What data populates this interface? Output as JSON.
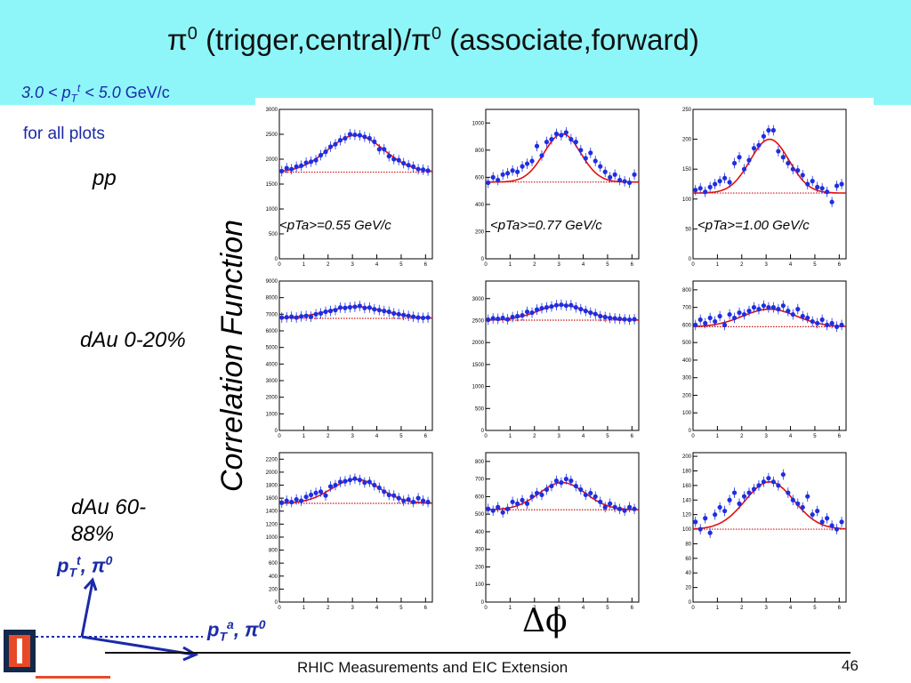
{
  "slide": {
    "title_pi_a": "π",
    "title_sup_a": "0",
    "title_mid": " (trigger,central)/",
    "title_pi_b": "π",
    "title_sup_b": "0",
    "title_end": " (associate,forward)",
    "pt_range_pre": "3.0 < p",
    "pt_range_sub": "T",
    "pt_range_sup": "t",
    "pt_range_post": " < 5.0",
    "pt_range_unit": " GeV/c",
    "for_all": "for all plots",
    "row_labels": [
      "pp",
      "dAu 0-20%",
      "dAu 60-88%"
    ],
    "y_axis_label": "Correlation Function",
    "x_axis_label": "Δϕ",
    "ptt_label_p": "p",
    "ptt_label_sub": "T",
    "ptt_label_sup": "t",
    "ptt_label_rest": ", π",
    "ptt_label_zero": "0",
    "pta_label_p": "p",
    "pta_label_sub": "T",
    "pta_label_sup": "a",
    "pta_label_rest": ", π",
    "pta_label_zero": "0",
    "footer": "RHIC Measurements and EIC Extension",
    "page_number": "46"
  },
  "colors": {
    "banner": "#8ef6f8",
    "text_blue": "#1b2aa8",
    "data_points": "#1f2ee0",
    "fit_line": "#e01010",
    "baseline": "#d01010",
    "arrow": "#1b2aa8"
  },
  "chart_data": [
    {
      "type": "scatter",
      "row": "pp",
      "pta_label": "<pTa>=0.55 GeV/c",
      "ylim": [
        0,
        3000
      ],
      "yticks": [
        0,
        500,
        1000,
        1500,
        2000,
        2500,
        3000
      ],
      "xticks": [
        0,
        1,
        2,
        3,
        4,
        5,
        6
      ],
      "baseline": 1740,
      "peak": 2480,
      "width": 1.15,
      "xmax": 6.28,
      "x": [
        0.1,
        0.3,
        0.5,
        0.7,
        0.9,
        1.1,
        1.3,
        1.5,
        1.7,
        1.9,
        2.1,
        2.3,
        2.5,
        2.7,
        2.9,
        3.1,
        3.3,
        3.5,
        3.7,
        3.9,
        4.1,
        4.3,
        4.5,
        4.7,
        4.9,
        5.1,
        5.3,
        5.5,
        5.7,
        5.9,
        6.1
      ],
      "y": [
        1760,
        1820,
        1800,
        1850,
        1870,
        1930,
        1950,
        1980,
        2080,
        2150,
        2250,
        2300,
        2380,
        2420,
        2500,
        2490,
        2480,
        2450,
        2420,
        2350,
        2200,
        2200,
        2060,
        2000,
        1980,
        1920,
        1880,
        1850,
        1800,
        1790,
        1770
      ]
    },
    {
      "type": "scatter",
      "row": "pp",
      "pta_label": "<pTa>=0.77 GeV/c",
      "ylim": [
        0,
        1100
      ],
      "yticks": [
        0,
        200,
        400,
        600,
        800,
        1000
      ],
      "xticks": [
        0,
        1,
        2,
        3,
        4,
        5,
        6
      ],
      "baseline": 565,
      "peak": 920,
      "width": 0.75,
      "xmax": 6.28,
      "x": [
        0.1,
        0.3,
        0.5,
        0.7,
        0.9,
        1.1,
        1.3,
        1.5,
        1.7,
        1.9,
        2.1,
        2.3,
        2.5,
        2.7,
        2.9,
        3.1,
        3.3,
        3.5,
        3.7,
        3.9,
        4.1,
        4.3,
        4.5,
        4.7,
        4.9,
        5.1,
        5.3,
        5.5,
        5.7,
        5.9,
        6.1
      ],
      "y": [
        560,
        600,
        580,
        620,
        630,
        650,
        640,
        680,
        700,
        720,
        830,
        760,
        860,
        880,
        920,
        910,
        930,
        880,
        860,
        800,
        740,
        780,
        720,
        680,
        640,
        600,
        620,
        580,
        570,
        560,
        620
      ]
    },
    {
      "type": "scatter",
      "row": "pp",
      "pta_label": "<pTa>=1.00 GeV/c",
      "ylim": [
        0,
        250
      ],
      "yticks": [
        0,
        50,
        100,
        150,
        200,
        250
      ],
      "xticks": [
        0,
        1,
        2,
        3,
        4,
        5,
        6
      ],
      "baseline": 110,
      "peak": 200,
      "width": 0.8,
      "xmax": 6.28,
      "x": [
        0.1,
        0.3,
        0.5,
        0.7,
        0.9,
        1.1,
        1.3,
        1.5,
        1.7,
        1.9,
        2.1,
        2.3,
        2.5,
        2.7,
        2.9,
        3.1,
        3.3,
        3.5,
        3.7,
        3.9,
        4.1,
        4.3,
        4.5,
        4.7,
        4.9,
        5.1,
        5.3,
        5.5,
        5.7,
        5.9,
        6.1
      ],
      "y": [
        115,
        118,
        112,
        120,
        125,
        130,
        135,
        128,
        160,
        170,
        150,
        165,
        185,
        190,
        205,
        215,
        215,
        180,
        170,
        160,
        150,
        148,
        140,
        125,
        130,
        120,
        118,
        112,
        95,
        122,
        125
      ]
    },
    {
      "type": "scatter",
      "row": "dAu 0-20%",
      "ylim": [
        0,
        9000
      ],
      "yticks": [
        0,
        1000,
        2000,
        3000,
        4000,
        5000,
        6000,
        7000,
        8000,
        9000
      ],
      "xticks": [
        0,
        1,
        2,
        3,
        4,
        5,
        6
      ],
      "baseline": 6750,
      "peak": 7450,
      "width": 1.2,
      "xmax": 6.28,
      "x": [
        0.1,
        0.3,
        0.5,
        0.7,
        0.9,
        1.1,
        1.3,
        1.5,
        1.7,
        1.9,
        2.1,
        2.3,
        2.5,
        2.7,
        2.9,
        3.1,
        3.3,
        3.5,
        3.7,
        3.9,
        4.1,
        4.3,
        4.5,
        4.7,
        4.9,
        5.1,
        5.3,
        5.5,
        5.7,
        5.9,
        6.1
      ],
      "y": [
        6800,
        6820,
        6850,
        6800,
        6870,
        6900,
        6850,
        7000,
        7050,
        7150,
        7200,
        7250,
        7400,
        7380,
        7420,
        7450,
        7500,
        7380,
        7400,
        7300,
        7250,
        7200,
        7150,
        7050,
        7000,
        6950,
        6900,
        6850,
        6800,
        6780,
        6800
      ]
    },
    {
      "type": "scatter",
      "row": "dAu 0-20%",
      "ylim": [
        0,
        3400
      ],
      "yticks": [
        0,
        500,
        1000,
        1500,
        2000,
        2500,
        3000
      ],
      "xticks": [
        0,
        1,
        2,
        3,
        4,
        5,
        6
      ],
      "baseline": 2510,
      "peak": 2850,
      "width": 1.0,
      "xmax": 6.28,
      "x": [
        0.1,
        0.3,
        0.5,
        0.7,
        0.9,
        1.1,
        1.3,
        1.5,
        1.7,
        1.9,
        2.1,
        2.3,
        2.5,
        2.7,
        2.9,
        3.1,
        3.3,
        3.5,
        3.7,
        3.9,
        4.1,
        4.3,
        4.5,
        4.7,
        4.9,
        5.1,
        5.3,
        5.5,
        5.7,
        5.9,
        6.1
      ],
      "y": [
        2520,
        2550,
        2540,
        2560,
        2530,
        2580,
        2600,
        2620,
        2700,
        2680,
        2750,
        2780,
        2800,
        2820,
        2850,
        2860,
        2840,
        2850,
        2800,
        2760,
        2720,
        2680,
        2650,
        2600,
        2580,
        2560,
        2550,
        2540,
        2530,
        2520,
        2530
      ]
    },
    {
      "type": "scatter",
      "row": "dAu 0-20%",
      "ylim": [
        0,
        850
      ],
      "yticks": [
        0,
        100,
        200,
        300,
        400,
        500,
        600,
        700,
        800
      ],
      "xticks": [
        0,
        1,
        2,
        3,
        4,
        5,
        6
      ],
      "baseline": 590,
      "peak": 690,
      "width": 1.1,
      "xmax": 6.28,
      "x": [
        0.1,
        0.3,
        0.5,
        0.7,
        0.9,
        1.1,
        1.3,
        1.5,
        1.7,
        1.9,
        2.1,
        2.3,
        2.5,
        2.7,
        2.9,
        3.1,
        3.3,
        3.5,
        3.7,
        3.9,
        4.1,
        4.3,
        4.5,
        4.7,
        4.9,
        5.1,
        5.3,
        5.5,
        5.7,
        5.9,
        6.1
      ],
      "y": [
        600,
        630,
        610,
        640,
        620,
        650,
        600,
        660,
        640,
        670,
        660,
        680,
        700,
        690,
        710,
        700,
        700,
        690,
        710,
        680,
        660,
        690,
        650,
        640,
        620,
        610,
        630,
        600,
        610,
        590,
        600
      ]
    },
    {
      "type": "scatter",
      "row": "dAu 60-88%",
      "ylim": [
        0,
        2300
      ],
      "yticks": [
        0,
        200,
        400,
        600,
        800,
        1000,
        1200,
        1400,
        1600,
        1800,
        2000,
        2200
      ],
      "xticks": [
        0,
        1,
        2,
        3,
        4,
        5,
        6
      ],
      "baseline": 1520,
      "peak": 1890,
      "width": 1.0,
      "xmax": 6.28,
      "x": [
        0.1,
        0.3,
        0.5,
        0.7,
        0.9,
        1.1,
        1.3,
        1.5,
        1.7,
        1.9,
        2.1,
        2.3,
        2.5,
        2.7,
        2.9,
        3.1,
        3.3,
        3.5,
        3.7,
        3.9,
        4.1,
        4.3,
        4.5,
        4.7,
        4.9,
        5.1,
        5.3,
        5.5,
        5.7,
        5.9,
        6.1
      ],
      "y": [
        1530,
        1560,
        1540,
        1580,
        1560,
        1620,
        1650,
        1680,
        1700,
        1640,
        1780,
        1800,
        1850,
        1860,
        1880,
        1900,
        1880,
        1840,
        1850,
        1800,
        1760,
        1700,
        1650,
        1640,
        1600,
        1560,
        1580,
        1540,
        1600,
        1560,
        1540
      ]
    },
    {
      "type": "scatter",
      "row": "dAu 60-88%",
      "ylim": [
        0,
        850
      ],
      "yticks": [
        0,
        100,
        200,
        300,
        400,
        500,
        600,
        700,
        800
      ],
      "xticks": [
        0,
        1,
        2,
        3,
        4,
        5,
        6
      ],
      "baseline": 525,
      "peak": 680,
      "width": 0.95,
      "xmax": 6.28,
      "x": [
        0.1,
        0.3,
        0.5,
        0.7,
        0.9,
        1.1,
        1.3,
        1.5,
        1.7,
        1.9,
        2.1,
        2.3,
        2.5,
        2.7,
        2.9,
        3.1,
        3.3,
        3.5,
        3.7,
        3.9,
        4.1,
        4.3,
        4.5,
        4.7,
        4.9,
        5.1,
        5.3,
        5.5,
        5.7,
        5.9,
        6.1
      ],
      "y": [
        530,
        520,
        540,
        510,
        530,
        570,
        560,
        580,
        560,
        600,
        620,
        610,
        640,
        660,
        690,
        680,
        700,
        690,
        660,
        640,
        610,
        620,
        600,
        570,
        540,
        560,
        540,
        530,
        520,
        540,
        530
      ]
    },
    {
      "type": "scatter",
      "row": "dAu 60-88%",
      "ylim": [
        0,
        205
      ],
      "yticks": [
        0,
        20,
        40,
        60,
        80,
        100,
        120,
        140,
        160,
        180,
        200
      ],
      "xticks": [
        0,
        1,
        2,
        3,
        4,
        5,
        6
      ],
      "baseline": 100,
      "peak": 165,
      "width": 1.0,
      "xmax": 6.28,
      "x": [
        0.1,
        0.3,
        0.5,
        0.7,
        0.9,
        1.1,
        1.3,
        1.5,
        1.7,
        1.9,
        2.1,
        2.3,
        2.5,
        2.7,
        2.9,
        3.1,
        3.3,
        3.5,
        3.7,
        3.9,
        4.1,
        4.3,
        4.5,
        4.7,
        4.9,
        5.1,
        5.3,
        5.5,
        5.7,
        5.9,
        6.1
      ],
      "y": [
        110,
        100,
        115,
        95,
        120,
        130,
        125,
        140,
        150,
        135,
        145,
        150,
        155,
        160,
        165,
        170,
        165,
        160,
        175,
        150,
        140,
        135,
        130,
        145,
        120,
        125,
        110,
        115,
        105,
        100,
        110
      ]
    }
  ]
}
